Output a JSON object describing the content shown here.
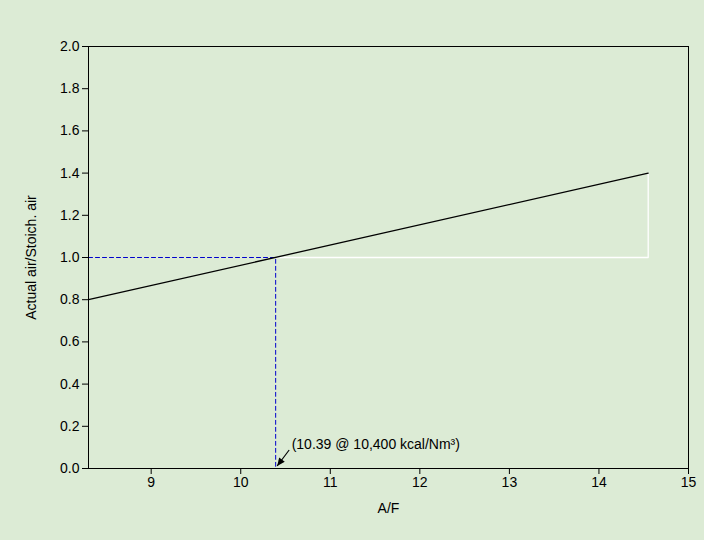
{
  "chart_data": {
    "type": "line",
    "x_label": "A/F",
    "y_label": "Actual air/Stoich. air",
    "series": [
      {
        "x": [
          10.39,
          14.55,
          14.55
        ],
        "values": [
          1.0,
          1.0,
          1.4
        ],
        "color": "#ffffff",
        "line_style": "solid"
      },
      {
        "x": [
          8.3,
          10.39,
          10.39
        ],
        "values": [
          1.0,
          1.0,
          0.0
        ],
        "color": "#0000cc",
        "line_style": "dashed"
      },
      {
        "x": [
          8.3,
          14.55
        ],
        "values": [
          0.8,
          1.4
        ],
        "color": "#000000",
        "line_style": "solid"
      }
    ],
    "annotations": [
      {
        "text": "(10.39 @ 10,400 kcal/Nm³)",
        "x": 10.39,
        "y": 0.0
      }
    ],
    "xlim": [
      8.3,
      15
    ],
    "xticks": [
      9,
      10,
      11,
      12,
      13,
      14,
      15
    ],
    "ylim": [
      0,
      2.0
    ],
    "yticks": [
      {
        "value": 0,
        "label": "0.0"
      },
      {
        "value": 0.2,
        "label": "0.2"
      },
      {
        "value": 0.4,
        "label": "0.4"
      },
      {
        "value": 0.6,
        "label": "0.6"
      },
      {
        "value": 0.8,
        "label": "0.8"
      },
      {
        "value": 1.0,
        "label": "1.0"
      },
      {
        "value": 1.2,
        "label": "1.2"
      },
      {
        "value": 1.4,
        "label": "1.4"
      },
      {
        "value": 1.6,
        "label": "1.6"
      },
      {
        "value": 1.8,
        "label": "1.8"
      },
      {
        "value": 2.0,
        "label": "2.0"
      }
    ],
    "grid": false
  }
}
